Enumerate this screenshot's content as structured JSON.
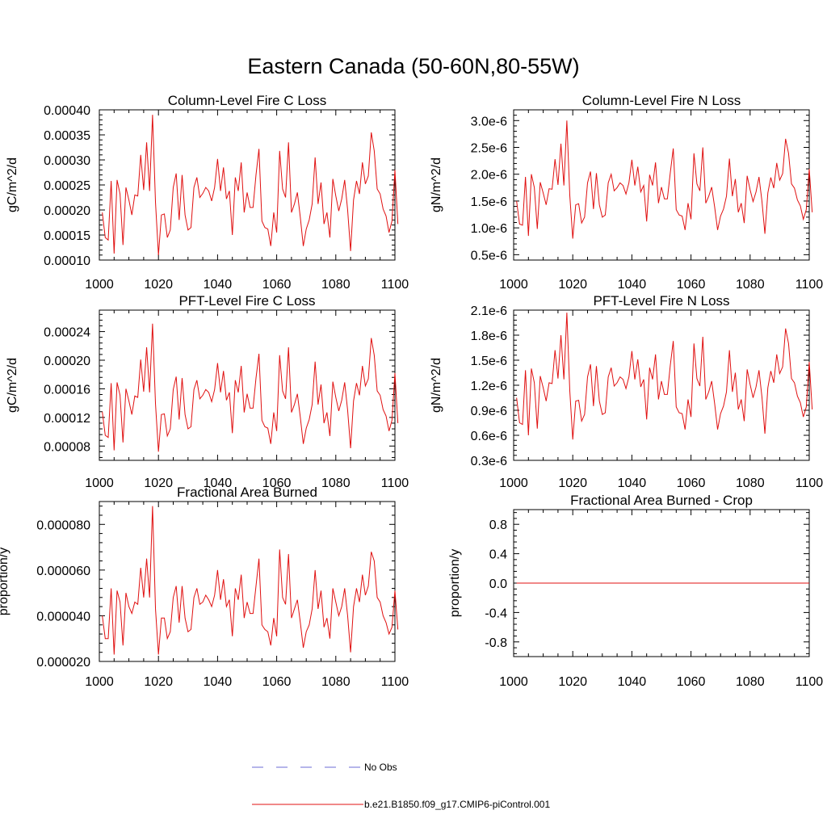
{
  "figure": {
    "title": "Eastern Canada (50-60N,80-55W)"
  },
  "legend": {
    "items": [
      {
        "label": "No Obs",
        "color": "#6b6bd6",
        "style": "dashed"
      },
      {
        "label": "b.e21.B1850.f09_g17.CMIP6-piControl.001",
        "color": "#e01010",
        "style": "solid"
      }
    ]
  },
  "chart_data": [
    {
      "id": "col-c",
      "type": "line",
      "title": "Column-Level Fire C Loss",
      "ylabel": "gC/m^2/d",
      "xlabel": "",
      "xlim": [
        1000,
        1100
      ],
      "ylim": [
        0.0001,
        0.0004
      ],
      "xticks": [
        1000,
        1020,
        1040,
        1060,
        1080,
        1100
      ],
      "xtick_labels": [
        "1000",
        "1020",
        "1040",
        "1060",
        "1080",
        "1100"
      ],
      "yticks": [
        0.0001,
        0.00015,
        0.0002,
        0.00025,
        0.0003,
        0.00035,
        0.0004
      ],
      "ytick_labels": [
        "0.00010",
        "0.00015",
        "0.00020",
        "0.00025",
        "0.00030",
        "0.00035",
        "0.00040"
      ],
      "series": [
        {
          "name": "b.e21.B1850.f09_g17.CMIP6-piControl.001",
          "color": "#e01010",
          "x_start": 1001,
          "x_step": 1,
          "values": [
            0.000195,
            0.000145,
            0.00014,
            0.000258,
            0.000113,
            0.00026,
            0.000232,
            0.00013,
            0.000245,
            0.00022,
            0.00019,
            0.00023,
            0.000228,
            0.00031,
            0.00024,
            0.000335,
            0.000238,
            0.00039,
            0.000215,
            0.00011,
            0.00019,
            0.000192,
            0.000145,
            0.00016,
            0.000245,
            0.000273,
            0.00018,
            0.00027,
            0.00019,
            0.00016,
            0.000165,
            0.000245,
            0.000265,
            0.000225,
            0.000233,
            0.000245,
            0.000238,
            0.000218,
            0.000245,
            0.000302,
            0.000238,
            0.000285,
            0.000222,
            0.000238,
            0.00015,
            0.000265,
            0.000238,
            0.000295,
            0.000195,
            0.000235,
            0.000205,
            0.000205,
            0.00027,
            0.000322,
            0.000178,
            0.000165,
            0.000162,
            0.000128,
            0.000195,
            0.000155,
            0.000318,
            0.000242,
            0.000225,
            0.000335,
            0.000195,
            0.000212,
            0.000235,
            0.000185,
            0.000128,
            0.000162,
            0.00018,
            0.000212,
            0.000305,
            0.000212,
            0.000255,
            0.000172,
            0.000195,
            0.000145,
            0.000262,
            0.000228,
            0.000198,
            0.000222,
            0.00026,
            0.0002,
            0.000118,
            0.00022,
            0.000258,
            0.000232,
            0.000295,
            0.000252,
            0.000268,
            0.000355,
            0.000318,
            0.000242,
            0.000232,
            0.000202,
            0.000188,
            0.000155,
            0.000178,
            0.00028,
            0.000172
          ]
        }
      ]
    },
    {
      "id": "col-n",
      "type": "line",
      "title": "Column-Level Fire N Loss",
      "ylabel": "gN/m^2/d",
      "xlabel": "",
      "xlim": [
        1000,
        1100
      ],
      "ylim": [
        4e-07,
        3.2e-06
      ],
      "xticks": [
        1000,
        1020,
        1040,
        1060,
        1080,
        1100
      ],
      "xtick_labels": [
        "1000",
        "1020",
        "1040",
        "1060",
        "1080",
        "1100"
      ],
      "yticks": [
        5e-07,
        1e-06,
        1.5e-06,
        2e-06,
        2.5e-06,
        3e-06
      ],
      "ytick_labels": [
        "0.5e-6",
        "1.0e-6",
        "1.5e-6",
        "2.0e-6",
        "2.5e-6",
        "3.0e-6"
      ],
      "series": [
        {
          "name": "b.e21.B1850.f09_g17.CMIP6-piControl.001",
          "color": "#e01010",
          "x_start": 1001,
          "x_step": 1,
          "values": [
            1.5e-06,
            1.07e-06,
            1.05e-06,
            1.95e-06,
            8.5e-07,
            2e-06,
            1.75e-06,
            9.8e-07,
            1.85e-06,
            1.65e-06,
            1.43e-06,
            1.73e-06,
            1.72e-06,
            2.28e-06,
            1.8e-06,
            2.57e-06,
            1.79e-06,
            3e-06,
            1.6e-06,
            8e-07,
            1.43e-06,
            1.45e-06,
            1.09e-06,
            1.2e-06,
            1.84e-06,
            2.05e-06,
            1.35e-06,
            2.02e-06,
            1.43e-06,
            1.2e-06,
            1.24e-06,
            1.84e-06,
            2e-06,
            1.69e-06,
            1.75e-06,
            1.84e-06,
            1.79e-06,
            1.63e-06,
            1.84e-06,
            2.27e-06,
            1.79e-06,
            2.14e-06,
            1.67e-06,
            1.79e-06,
            1.12e-06,
            1.99e-06,
            1.79e-06,
            2.22e-06,
            1.46e-06,
            1.76e-06,
            1.54e-06,
            1.54e-06,
            2.03e-06,
            2.48e-06,
            1.34e-06,
            1.24e-06,
            1.22e-06,
            9.6e-07,
            1.46e-06,
            1.16e-06,
            2.39e-06,
            1.82e-06,
            1.69e-06,
            2.5e-06,
            1.46e-06,
            1.59e-06,
            1.76e-06,
            1.39e-06,
            9.6e-07,
            1.22e-06,
            1.35e-06,
            1.59e-06,
            2.29e-06,
            1.59e-06,
            1.91e-06,
            1.29e-06,
            1.46e-06,
            1.09e-06,
            1.97e-06,
            1.71e-06,
            1.49e-06,
            1.67e-06,
            1.95e-06,
            1.5e-06,
            8.9e-07,
            1.65e-06,
            1.94e-06,
            1.74e-06,
            2.21e-06,
            1.89e-06,
            2.01e-06,
            2.66e-06,
            2.39e-06,
            1.82e-06,
            1.74e-06,
            1.52e-06,
            1.41e-06,
            1.16e-06,
            1.34e-06,
            2.1e-06,
            1.29e-06
          ]
        }
      ]
    },
    {
      "id": "pft-c",
      "type": "line",
      "title": "PFT-Level Fire C Loss",
      "ylabel": "gC/m^2/d",
      "xlabel": "",
      "xlim": [
        1000,
        1100
      ],
      "ylim": [
        6e-05,
        0.00027
      ],
      "xticks": [
        1000,
        1020,
        1040,
        1060,
        1080,
        1100
      ],
      "xtick_labels": [
        "1000",
        "1020",
        "1040",
        "1060",
        "1080",
        "1100"
      ],
      "yticks": [
        8e-05,
        0.00012,
        0.00016,
        0.0002,
        0.00024
      ],
      "ytick_labels": [
        "0.00008",
        "0.00012",
        "0.00016",
        "0.00020",
        "0.00024"
      ],
      "series": [
        {
          "name": "b.e21.B1850.f09_g17.CMIP6-piControl.001",
          "color": "#e01010",
          "x_start": 1001,
          "x_step": 1,
          "values": [
            0.000128,
            9.5e-05,
            9.2e-05,
            0.000168,
            7.4e-05,
            0.000169,
            0.000151,
            8.5e-05,
            0.00016,
            0.000143,
            0.000124,
            0.00015,
            0.000148,
            0.000201,
            0.000156,
            0.000218,
            0.000155,
            0.000251,
            0.000139,
            7.2e-05,
            0.000124,
            0.000125,
            9.4e-05,
            0.000104,
            0.000159,
            0.000177,
            0.000117,
            0.000175,
            0.000124,
            0.000104,
            0.000107,
            0.000159,
            0.000172,
            0.000146,
            0.000151,
            0.000159,
            0.000155,
            0.000142,
            0.000159,
            0.000196,
            0.000155,
            0.000185,
            0.000144,
            0.000155,
            9.8e-05,
            0.000172,
            0.000155,
            0.000192,
            0.000127,
            0.000153,
            0.000133,
            0.000133,
            0.000175,
            0.000209,
            0.000116,
            0.000107,
            0.000105,
            8.3e-05,
            0.000127,
            0.000101,
            0.000207,
            0.000157,
            0.000146,
            0.000218,
            0.000127,
            0.000138,
            0.000153,
            0.00012,
            8.3e-05,
            0.000105,
            0.000117,
            0.000138,
            0.000198,
            0.000138,
            0.000166,
            0.000112,
            0.000127,
            9.4e-05,
            0.00017,
            0.000148,
            0.000129,
            0.000144,
            0.000169,
            0.00013,
            7.7e-05,
            0.000143,
            0.000168,
            0.000151,
            0.000192,
            0.000164,
            0.000174,
            0.000231,
            0.000207,
            0.000157,
            0.000151,
            0.000131,
            0.000122,
            0.000101,
            0.000116,
            0.000182,
            0.000112
          ]
        }
      ]
    },
    {
      "id": "pft-n",
      "type": "line",
      "title": "PFT-Level Fire N Loss",
      "ylabel": "gN/m^2/d",
      "xlabel": "",
      "xlim": [
        1000,
        1100
      ],
      "ylim": [
        3e-07,
        2.1e-06
      ],
      "xticks": [
        1000,
        1020,
        1040,
        1060,
        1080,
        1100
      ],
      "xtick_labels": [
        "1000",
        "1020",
        "1040",
        "1060",
        "1080",
        "1100"
      ],
      "yticks": [
        3e-07,
        6e-07,
        9e-07,
        1.2e-06,
        1.5e-06,
        1.8e-06,
        2.1e-06
      ],
      "ytick_labels": [
        "0.3e-6",
        "0.6e-6",
        "0.9e-6",
        "1.2e-6",
        "1.5e-6",
        "1.8e-6",
        "2.1e-6"
      ],
      "series": [
        {
          "name": "b.e21.B1850.f09_g17.CMIP6-piControl.001",
          "color": "#e01010",
          "x_start": 1001,
          "x_step": 1,
          "values": [
            1.05e-06,
            7.5e-07,
            7.3e-07,
            1.38e-06,
            6e-07,
            1.4e-06,
            1.23e-06,
            6.8e-07,
            1.31e-06,
            1.17e-06,
            1.01e-06,
            1.23e-06,
            1.22e-06,
            1.62e-06,
            1.28e-06,
            1.8e-06,
            1.27e-06,
            2.07e-06,
            1.13e-06,
            5.5e-07,
            1.01e-06,
            1.02e-06,
            7.7e-07,
            8.5e-07,
            1.3e-06,
            1.45e-06,
            9.5e-07,
            1.43e-06,
            1.01e-06,
            8.5e-07,
            8.7e-07,
            1.3e-06,
            1.41e-06,
            1.19e-06,
            1.23e-06,
            1.3e-06,
            1.27e-06,
            1.16e-06,
            1.3e-06,
            1.61e-06,
            1.27e-06,
            1.51e-06,
            1.18e-06,
            1.27e-06,
            7.9e-07,
            1.41e-06,
            1.27e-06,
            1.57e-06,
            1.03e-06,
            1.25e-06,
            1.09e-06,
            1.09e-06,
            1.44e-06,
            1.73e-06,
            9.4e-07,
            8.7e-07,
            8.6e-07,
            6.7e-07,
            1.03e-06,
            8.2e-07,
            1.7e-06,
            1.28e-06,
            1.19e-06,
            1.78e-06,
            1.03e-06,
            1.12e-06,
            1.25e-06,
            9.8e-07,
            6.7e-07,
            8.6e-07,
            9.5e-07,
            1.12e-06,
            1.62e-06,
            1.12e-06,
            1.35e-06,
            9.1e-07,
            1.03e-06,
            7.7e-07,
            1.39e-06,
            1.21e-06,
            1.05e-06,
            1.18e-06,
            1.38e-06,
            1.06e-06,
            6.2e-07,
            1.17e-06,
            1.37e-06,
            1.23e-06,
            1.57e-06,
            1.34e-06,
            1.42e-06,
            1.88e-06,
            1.7e-06,
            1.28e-06,
            1.23e-06,
            1.07e-06,
            9.9e-07,
            8.2e-07,
            9.4e-07,
            1.48e-06,
            9.1e-07
          ]
        }
      ]
    },
    {
      "id": "frac-area",
      "type": "line",
      "title": "Fractional Area Burned",
      "ylabel": "proportion/y",
      "xlabel": "",
      "xlim": [
        1000,
        1100
      ],
      "ylim": [
        2e-05,
        9e-05
      ],
      "xticks": [
        1000,
        1020,
        1040,
        1060,
        1080,
        1100
      ],
      "xtick_labels": [
        "1000",
        "1020",
        "1040",
        "1060",
        "1080",
        "1100"
      ],
      "yticks": [
        2e-05,
        4e-05,
        6e-05,
        8e-05
      ],
      "ytick_labels": [
        "0.000020",
        "0.000040",
        "0.000060",
        "0.000080"
      ],
      "series": [
        {
          "name": "b.e21.B1850.f09_g17.CMIP6-piControl.001",
          "color": "#e01010",
          "x_start": 1001,
          "x_step": 1,
          "values": [
            4e-05,
            3e-05,
            3e-05,
            5.2e-05,
            2.3e-05,
            5.1e-05,
            4.6e-05,
            2.7e-05,
            5e-05,
            4.4e-05,
            4.1e-05,
            4.6e-05,
            4.5e-05,
            6.1e-05,
            4.8e-05,
            6.5e-05,
            4.8e-05,
            8.8e-05,
            4.3e-05,
            2.3e-05,
            3.9e-05,
            3.9e-05,
            3e-05,
            3.3e-05,
            4.8e-05,
            5.3e-05,
            3.7e-05,
            5.3e-05,
            3.9e-05,
            3.3e-05,
            3.4e-05,
            4.8e-05,
            5.2e-05,
            4.5e-05,
            4.6e-05,
            4.9e-05,
            4.7e-05,
            4.4e-05,
            4.9e-05,
            6e-05,
            4.7e-05,
            5.6e-05,
            4.4e-05,
            4.7e-05,
            3.1e-05,
            5.2e-05,
            4.7e-05,
            5.8e-05,
            3.9e-05,
            4.6e-05,
            4.1e-05,
            4.1e-05,
            5.3e-05,
            6.5e-05,
            3.6e-05,
            3.4e-05,
            3.3e-05,
            2.7e-05,
            3.9e-05,
            3.1e-05,
            6.9e-05,
            4.8e-05,
            4.5e-05,
            6.7e-05,
            3.9e-05,
            4.3e-05,
            4.7e-05,
            3.7e-05,
            2.6e-05,
            3.3e-05,
            3.6e-05,
            4.3e-05,
            6e-05,
            4.3e-05,
            5.1e-05,
            3.5e-05,
            3.9e-05,
            3e-05,
            5.2e-05,
            4.6e-05,
            4e-05,
            4.4e-05,
            5.2e-05,
            4e-05,
            2.4e-05,
            4.4e-05,
            5.2e-05,
            4.6e-05,
            5.8e-05,
            4.9e-05,
            5.3e-05,
            6.8e-05,
            6.4e-05,
            4.8e-05,
            4.6e-05,
            4e-05,
            3.7e-05,
            3.2e-05,
            3.5e-05,
            5.1e-05,
            3.4e-05
          ]
        }
      ]
    },
    {
      "id": "frac-area-crop",
      "type": "line",
      "title": "Fractional Area Burned - Crop",
      "ylabel": "proportion/y",
      "xlabel": "",
      "xlim": [
        1000,
        1100
      ],
      "ylim": [
        -1,
        1
      ],
      "xticks": [
        1000,
        1020,
        1040,
        1060,
        1080,
        1100
      ],
      "xtick_labels": [
        "1000",
        "1020",
        "1040",
        "1060",
        "1080",
        "1100"
      ],
      "yticks": [
        -0.8,
        -0.4,
        0,
        0.4,
        0.8
      ],
      "ytick_labels": [
        "-0.8",
        "-0.4",
        "0.0",
        "0.4",
        "0.8"
      ],
      "series": [
        {
          "name": "b.e21.B1850.f09_g17.CMIP6-piControl.001",
          "color": "#e01010",
          "x_start": 1001,
          "x_step": 99,
          "values": [
            0,
            0
          ]
        }
      ]
    }
  ]
}
